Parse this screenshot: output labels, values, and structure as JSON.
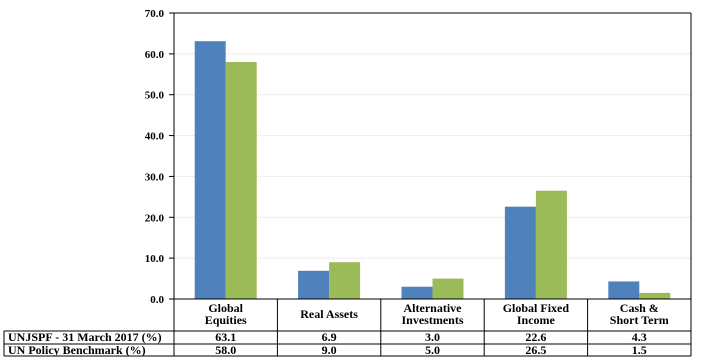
{
  "chart_data": {
    "type": "bar",
    "categories": [
      [
        "Global",
        "Equities"
      ],
      [
        "Real Assets"
      ],
      [
        "Alternative",
        "Investments"
      ],
      [
        "Global Fixed",
        "Income"
      ],
      [
        "Cash &",
        "Short Term"
      ]
    ],
    "series": [
      {
        "name": "UNJSPF - 31 March 2017 (%)",
        "color": "#4f81bd",
        "values": [
          63.1,
          6.9,
          3.0,
          22.6,
          4.3
        ],
        "labels": [
          "63.1",
          "6.9",
          "3.0",
          "22.6",
          "4.3"
        ]
      },
      {
        "name": "UN Policy Benchmark (%)",
        "color": "#9bbb59",
        "values": [
          58.0,
          9.0,
          5.0,
          26.5,
          1.5
        ],
        "labels": [
          "58.0",
          "9.0",
          "5.0",
          "26.5",
          "1.5"
        ]
      }
    ],
    "yticks": [
      "0.0",
      "10.0",
      "20.0",
      "30.0",
      "40.0",
      "50.0",
      "60.0",
      "70.0"
    ],
    "ylim": [
      0,
      70
    ],
    "grid": true,
    "legend": "data-table"
  }
}
